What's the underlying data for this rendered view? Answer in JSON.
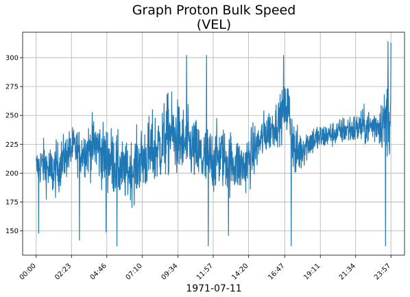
{
  "chart_data": {
    "type": "line",
    "title_line1": "Graph Proton Bulk Speed",
    "title_line2": "(VEL)",
    "xlabel": "1971-07-11",
    "ylabel": "",
    "x_unit": "minutes of day",
    "xlim": [
      -55,
      1492
    ],
    "ylim": [
      129,
      322
    ],
    "grid": true,
    "x_ticks": [
      {
        "minute": 0,
        "label": "00:00"
      },
      {
        "minute": 143,
        "label": "02:23"
      },
      {
        "minute": 286,
        "label": "04:46"
      },
      {
        "minute": 430,
        "label": "07:10"
      },
      {
        "minute": 574,
        "label": "09:34"
      },
      {
        "minute": 717,
        "label": "11:57"
      },
      {
        "minute": 860,
        "label": "14:20"
      },
      {
        "minute": 1007,
        "label": "16:47"
      },
      {
        "minute": 1151,
        "label": "19:11"
      },
      {
        "minute": 1294,
        "label": "21:34"
      },
      {
        "minute": 1437,
        "label": "23:57"
      }
    ],
    "y_ticks": [
      150,
      175,
      200,
      225,
      250,
      275,
      300
    ],
    "series": [
      {
        "name": "",
        "color": "#1f77b4",
        "x": [
          0,
          30,
          60,
          90,
          120,
          150,
          180,
          210,
          240,
          270,
          300,
          330,
          360,
          390,
          420,
          450,
          480,
          510,
          540,
          570,
          600,
          630,
          660,
          690,
          720,
          750,
          780,
          810,
          840,
          870,
          900,
          930,
          960,
          990,
          1020,
          1050,
          1080,
          1110,
          1140,
          1170,
          1200,
          1230,
          1260,
          1290,
          1320,
          1350,
          1380,
          1410,
          1437
        ],
        "y": [
          205,
          208,
          200,
          205,
          215,
          222,
          218,
          220,
          225,
          215,
          212,
          205,
          200,
          203,
          210,
          215,
          220,
          225,
          235,
          230,
          225,
          222,
          215,
          210,
          212,
          215,
          210,
          208,
          205,
          215,
          225,
          235,
          240,
          248,
          258,
          215,
          222,
          228,
          230,
          232,
          234,
          236,
          238,
          238,
          240,
          240,
          242,
          245,
          255
        ],
        "noise": [
          14,
          18,
          22,
          20,
          18,
          16,
          18,
          20,
          24,
          25,
          26,
          25,
          22,
          24,
          26,
          28,
          30,
          30,
          32,
          30,
          28,
          26,
          26,
          28,
          26,
          24,
          25,
          22,
          22,
          22,
          18,
          18,
          16,
          18,
          22,
          22,
          16,
          12,
          12,
          10,
          10,
          10,
          12,
          12,
          14,
          14,
          16,
          22,
          38
        ],
        "extremes": [
          {
            "x": 10,
            "y": 148
          },
          {
            "x": 175,
            "y": 142
          },
          {
            "x": 283,
            "y": 149
          },
          {
            "x": 327,
            "y": 137
          },
          {
            "x": 609,
            "y": 302
          },
          {
            "x": 690,
            "y": 302
          },
          {
            "x": 697,
            "y": 137
          },
          {
            "x": 779,
            "y": 146
          },
          {
            "x": 1002,
            "y": 302
          },
          {
            "x": 1033,
            "y": 137
          },
          {
            "x": 1415,
            "y": 137
          },
          {
            "x": 1425,
            "y": 314
          },
          {
            "x": 1437,
            "y": 313
          }
        ]
      }
    ]
  }
}
